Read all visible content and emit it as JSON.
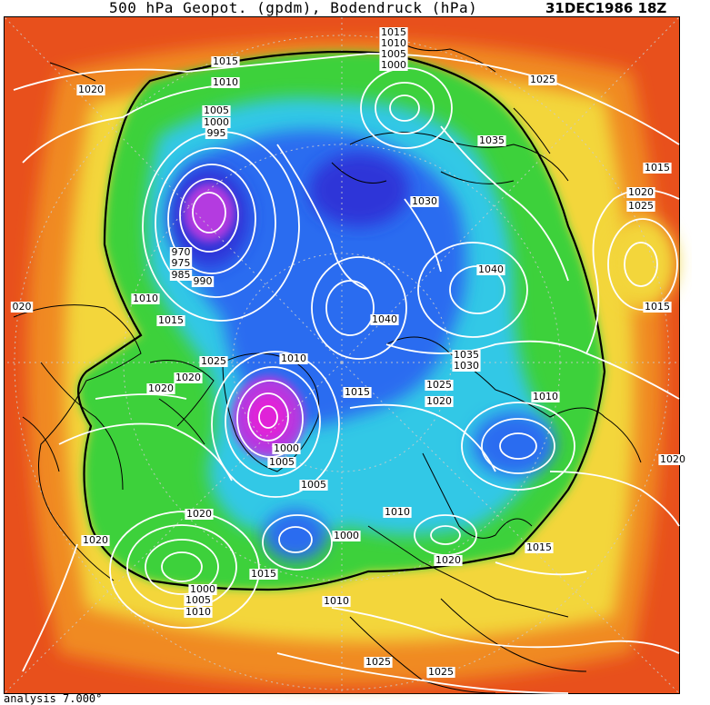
{
  "header": {
    "title": "500 hPa Geopot. (gpdm), Bodendruck (hPa)",
    "datetime": "31DEC1986 18Z"
  },
  "footer": {
    "text": "analysis 7.000°"
  },
  "colors": {
    "outer": "#e8501c",
    "orange": "#f08a24",
    "yellow": "#f3d63a",
    "green": "#3ed13a",
    "cyan": "#33c8e6",
    "blue": "#2b6cf0",
    "deepblue": "#2d35d8",
    "purple": "#b43be0",
    "magenta": "#e020d8",
    "contour": "#ffffff",
    "coast": "#000000"
  },
  "pressure_labels": [
    "1015",
    "1010",
    "1005",
    "1020",
    "1000",
    "1025",
    "1015",
    "1010",
    "1005",
    "1000",
    "995",
    "1035",
    "1015",
    "1030",
    "1020",
    "1025",
    "1040",
    "970",
    "975",
    "985",
    "990",
    "1010",
    "1015",
    "1040",
    "1015",
    "1010",
    "1035",
    "1030",
    "1025",
    "1020",
    "1010",
    "1015",
    "1020",
    "1025",
    "1020",
    "1000",
    "1005",
    "1005",
    "1000",
    "1010",
    "1015",
    "1020",
    "1015",
    "1020",
    "1000",
    "1005",
    "1010",
    "1010",
    "1025",
    "1025",
    "1020",
    "020",
    "1020"
  ]
}
